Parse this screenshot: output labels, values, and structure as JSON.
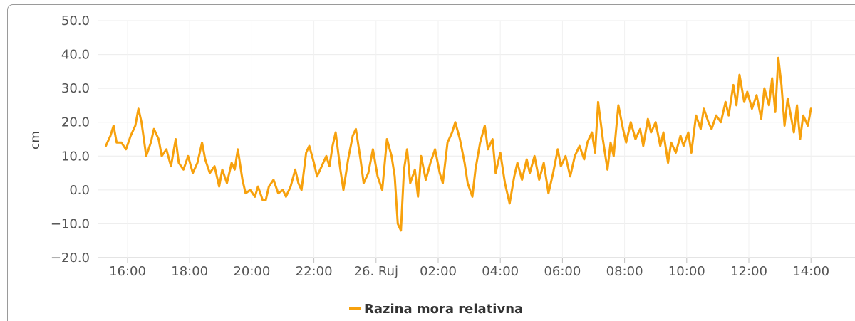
{
  "chart_data": {
    "type": "line",
    "title": "",
    "xlabel": "",
    "ylabel": "cm",
    "ylim": [
      -20,
      50
    ],
    "yticks": [
      "−20.0",
      "−10.0",
      "0.0",
      "10.0",
      "20.0",
      "30.0",
      "40.0",
      "50.0"
    ],
    "xticks": [
      "16:00",
      "18:00",
      "20:00",
      "22:00",
      "26. Ruj",
      "02:00",
      "04:00",
      "06:00",
      "08:00",
      "10:00",
      "12:00",
      "14:00"
    ],
    "x_hours_range": [
      -0.75,
      23.6
    ],
    "grid": true,
    "legend_position": "bottom-center",
    "series": [
      {
        "name": "Razina mora relativna",
        "color": "#f7a10d",
        "points": [
          [
            -0.7,
            13
          ],
          [
            -0.55,
            16
          ],
          [
            -0.45,
            19
          ],
          [
            -0.35,
            14
          ],
          [
            -0.2,
            14
          ],
          [
            -0.05,
            12
          ],
          [
            0.1,
            16
          ],
          [
            0.25,
            19
          ],
          [
            0.35,
            24
          ],
          [
            0.45,
            20
          ],
          [
            0.6,
            10
          ],
          [
            0.75,
            14
          ],
          [
            0.85,
            18
          ],
          [
            1.0,
            15
          ],
          [
            1.1,
            10
          ],
          [
            1.25,
            12
          ],
          [
            1.4,
            7
          ],
          [
            1.55,
            15
          ],
          [
            1.65,
            8
          ],
          [
            1.8,
            6
          ],
          [
            1.95,
            10
          ],
          [
            2.1,
            5
          ],
          [
            2.25,
            8
          ],
          [
            2.4,
            14
          ],
          [
            2.5,
            9
          ],
          [
            2.65,
            5
          ],
          [
            2.8,
            7
          ],
          [
            2.95,
            1
          ],
          [
            3.05,
            6
          ],
          [
            3.2,
            2
          ],
          [
            3.35,
            8
          ],
          [
            3.45,
            6
          ],
          [
            3.55,
            12
          ],
          [
            3.7,
            3
          ],
          [
            3.8,
            -1
          ],
          [
            3.95,
            0
          ],
          [
            4.1,
            -2
          ],
          [
            4.2,
            1
          ],
          [
            4.35,
            -3
          ],
          [
            4.45,
            -3
          ],
          [
            4.55,
            1
          ],
          [
            4.7,
            3
          ],
          [
            4.85,
            -1
          ],
          [
            5.0,
            0
          ],
          [
            5.1,
            -2
          ],
          [
            5.25,
            1
          ],
          [
            5.4,
            6
          ],
          [
            5.5,
            2
          ],
          [
            5.6,
            0
          ],
          [
            5.75,
            11
          ],
          [
            5.85,
            13
          ],
          [
            6.0,
            8
          ],
          [
            6.1,
            4
          ],
          [
            6.25,
            7
          ],
          [
            6.4,
            10
          ],
          [
            6.5,
            7
          ],
          [
            6.6,
            13
          ],
          [
            6.7,
            17
          ],
          [
            6.85,
            6
          ],
          [
            6.95,
            0
          ],
          [
            7.1,
            9
          ],
          [
            7.25,
            16
          ],
          [
            7.35,
            18
          ],
          [
            7.5,
            9
          ],
          [
            7.6,
            2
          ],
          [
            7.75,
            5
          ],
          [
            7.9,
            12
          ],
          [
            8.05,
            4
          ],
          [
            8.2,
            0
          ],
          [
            8.35,
            15
          ],
          [
            8.5,
            10
          ],
          [
            8.6,
            4
          ],
          [
            8.7,
            -10
          ],
          [
            8.8,
            -12
          ],
          [
            8.9,
            6
          ],
          [
            9.0,
            12
          ],
          [
            9.1,
            2
          ],
          [
            9.25,
            6
          ],
          [
            9.35,
            -2
          ],
          [
            9.45,
            10
          ],
          [
            9.6,
            3
          ],
          [
            9.75,
            8
          ],
          [
            9.9,
            12
          ],
          [
            10.05,
            5
          ],
          [
            10.15,
            2
          ],
          [
            10.3,
            14
          ],
          [
            10.45,
            17
          ],
          [
            10.55,
            20
          ],
          [
            10.7,
            15
          ],
          [
            10.85,
            8
          ],
          [
            10.95,
            2
          ],
          [
            11.1,
            -2
          ],
          [
            11.2,
            6
          ],
          [
            11.35,
            14
          ],
          [
            11.5,
            19
          ],
          [
            11.6,
            12
          ],
          [
            11.75,
            15
          ],
          [
            11.85,
            5
          ],
          [
            12.0,
            11
          ],
          [
            12.15,
            2
          ],
          [
            12.3,
            -4
          ],
          [
            12.45,
            4
          ],
          [
            12.55,
            8
          ],
          [
            12.7,
            3
          ],
          [
            12.85,
            9
          ],
          [
            12.95,
            5
          ],
          [
            13.1,
            10
          ],
          [
            13.25,
            3
          ],
          [
            13.4,
            8
          ],
          [
            13.55,
            -1
          ],
          [
            13.7,
            5
          ],
          [
            13.85,
            12
          ],
          [
            13.95,
            7
          ],
          [
            14.1,
            10
          ],
          [
            14.25,
            4
          ],
          [
            14.4,
            10
          ],
          [
            14.55,
            13
          ],
          [
            14.7,
            9
          ],
          [
            14.8,
            14
          ],
          [
            14.95,
            17
          ],
          [
            15.05,
            11
          ],
          [
            15.15,
            26
          ],
          [
            15.3,
            15
          ],
          [
            15.45,
            6
          ],
          [
            15.55,
            14
          ],
          [
            15.65,
            10
          ],
          [
            15.8,
            25
          ],
          [
            15.95,
            18
          ],
          [
            16.05,
            14
          ],
          [
            16.2,
            20
          ],
          [
            16.35,
            15
          ],
          [
            16.5,
            18
          ],
          [
            16.6,
            13
          ],
          [
            16.75,
            21
          ],
          [
            16.85,
            17
          ],
          [
            17.0,
            20
          ],
          [
            17.15,
            13
          ],
          [
            17.25,
            17
          ],
          [
            17.4,
            8
          ],
          [
            17.5,
            14
          ],
          [
            17.65,
            11
          ],
          [
            17.8,
            16
          ],
          [
            17.9,
            13
          ],
          [
            18.05,
            17
          ],
          [
            18.15,
            11
          ],
          [
            18.3,
            22
          ],
          [
            18.45,
            18
          ],
          [
            18.55,
            24
          ],
          [
            18.7,
            20
          ],
          [
            18.8,
            18
          ],
          [
            18.95,
            22
          ],
          [
            19.1,
            20
          ],
          [
            19.25,
            26
          ],
          [
            19.35,
            22
          ],
          [
            19.5,
            31
          ],
          [
            19.6,
            25
          ],
          [
            19.7,
            34
          ],
          [
            19.85,
            26
          ],
          [
            19.95,
            29
          ],
          [
            20.1,
            24
          ],
          [
            20.25,
            28
          ],
          [
            20.4,
            21
          ],
          [
            20.5,
            30
          ],
          [
            20.65,
            25
          ],
          [
            20.75,
            33
          ],
          [
            20.85,
            23
          ],
          [
            20.95,
            39
          ],
          [
            21.05,
            31
          ],
          [
            21.15,
            19
          ],
          [
            21.25,
            27
          ],
          [
            21.35,
            22
          ],
          [
            21.45,
            17
          ],
          [
            21.55,
            25
          ],
          [
            21.65,
            15
          ],
          [
            21.75,
            22
          ],
          [
            21.9,
            19
          ],
          [
            22.0,
            24
          ]
        ]
      }
    ]
  }
}
